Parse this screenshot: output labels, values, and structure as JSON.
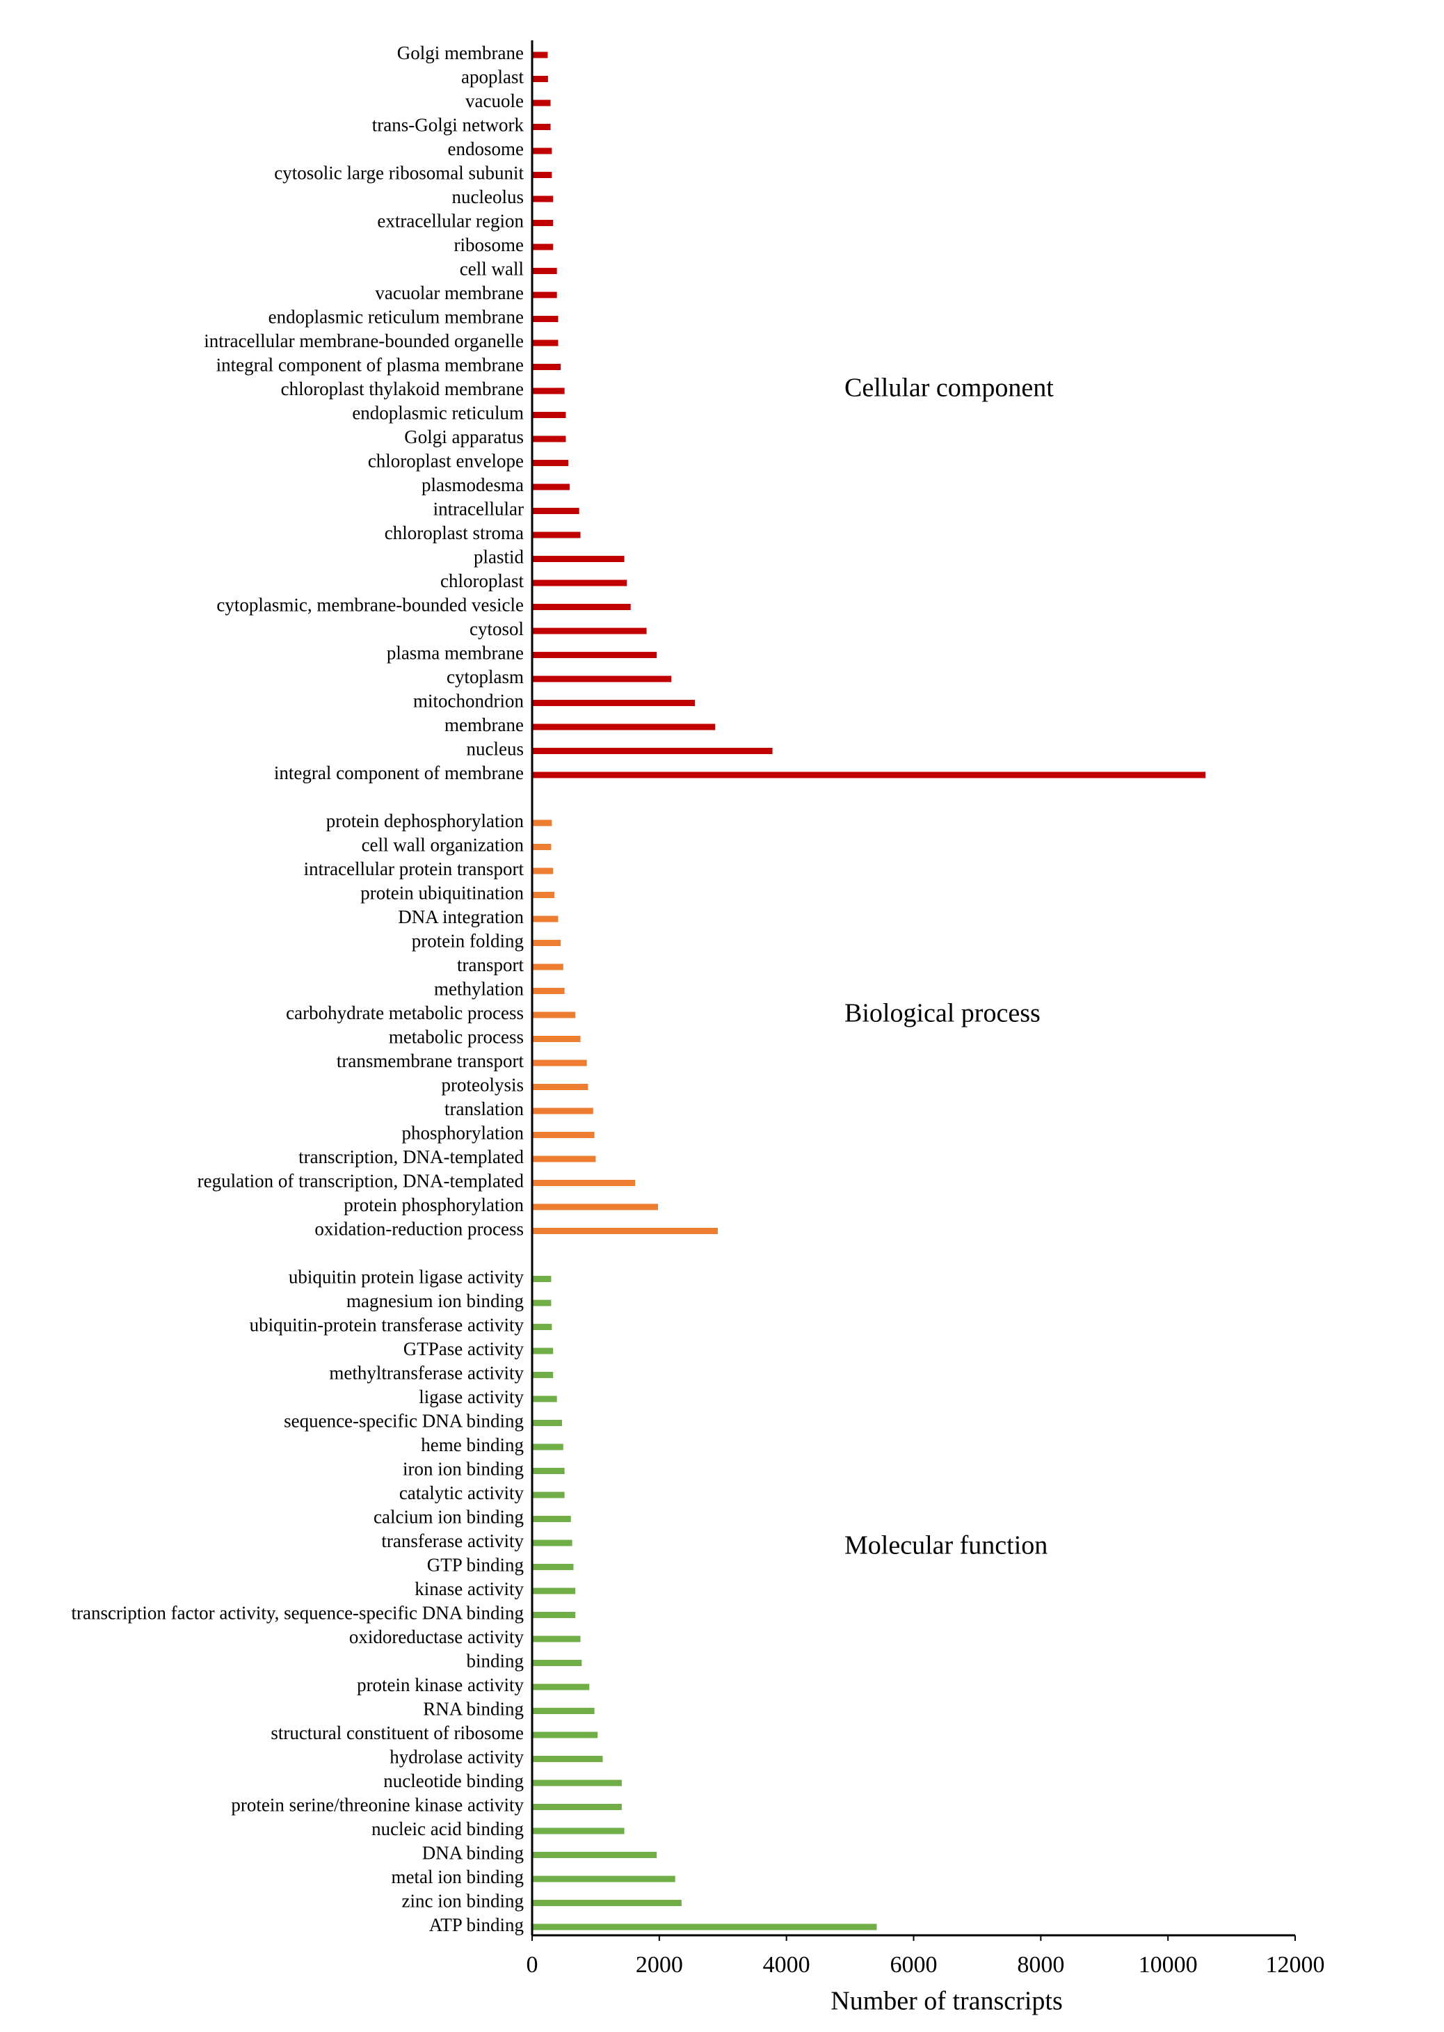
{
  "chart_data": {
    "type": "bar",
    "orientation": "horizontal",
    "xlabel": "Number of transcripts",
    "xlim": [
      0,
      12000
    ],
    "xticks": [
      0,
      2000,
      4000,
      6000,
      8000,
      10000,
      12000
    ],
    "groups": [
      {
        "name": "Cellular component",
        "color": "#c00000",
        "categories": [
          "Golgi membrane",
          "apoplast",
          "vacuole",
          "trans-Golgi network",
          "endosome",
          "cytosolic large ribosomal subunit",
          "nucleolus",
          "extracellular region",
          "ribosome",
          "cell wall",
          "vacuolar membrane",
          "endoplasmic reticulum membrane",
          "intracellular membrane-bounded organelle",
          "integral component of plasma membrane",
          "chloroplast thylakoid membrane",
          "endoplasmic reticulum",
          "Golgi apparatus",
          "chloroplast envelope",
          "plasmodesma",
          "intracellular",
          "chloroplast stroma",
          "plastid",
          "chloroplast",
          "cytoplasmic, membrane-bounded vesicle",
          "cytosol",
          "plasma membrane",
          "cytoplasm",
          "mitochondrion",
          "membrane",
          "nucleus",
          "integral component of membrane"
        ],
        "values": [
          245,
          250,
          290,
          290,
          310,
          310,
          330,
          330,
          330,
          390,
          390,
          410,
          410,
          450,
          510,
          530,
          530,
          570,
          590,
          740,
          760,
          1450,
          1490,
          1550,
          1800,
          1960,
          2190,
          2560,
          2880,
          3780,
          10590
        ]
      },
      {
        "name": "Biological process",
        "color": "#ed7d31",
        "categories": [
          "protein dephosphorylation",
          "cell wall organization",
          "intracellular protein transport",
          "protein ubiquitination",
          "DNA integration",
          "protein folding",
          "transport",
          "methylation",
          "carbohydrate metabolic process",
          "metabolic process",
          "transmembrane transport",
          "proteolysis",
          "translation",
          "phosphorylation",
          "transcription, DNA-templated",
          "regulation of transcription, DNA-templated",
          "protein phosphorylation",
          "oxidation-reduction process"
        ],
        "values": [
          310,
          300,
          330,
          350,
          410,
          450,
          490,
          510,
          680,
          760,
          860,
          880,
          960,
          980,
          1000,
          1620,
          1980,
          2920
        ]
      },
      {
        "name": "Molecular function",
        "color": "#70ad47",
        "categories": [
          "ubiquitin protein ligase activity",
          "magnesium ion binding",
          "ubiquitin-protein transferase activity",
          "GTPase activity",
          "methyltransferase activity",
          "ligase activity",
          "sequence-specific DNA binding",
          "heme binding",
          "iron ion binding",
          "catalytic activity",
          "calcium ion binding",
          "transferase activity",
          "GTP binding",
          "kinase activity",
          "transcription factor activity, sequence-specific DNA binding",
          "oxidoreductase activity",
          "binding",
          "protein kinase activity",
          "RNA binding",
          "structural constituent of ribosome",
          "hydrolase activity",
          "nucleotide binding",
          "protein serine/threonine kinase activity",
          "nucleic acid binding",
          "DNA binding",
          "metal ion binding",
          "zinc ion binding",
          "ATP binding"
        ],
        "values": [
          300,
          300,
          310,
          330,
          330,
          390,
          470,
          490,
          510,
          510,
          610,
          630,
          650,
          680,
          680,
          760,
          780,
          900,
          980,
          1030,
          1110,
          1410,
          1410,
          1450,
          1960,
          2250,
          2350,
          5420
        ]
      }
    ]
  }
}
